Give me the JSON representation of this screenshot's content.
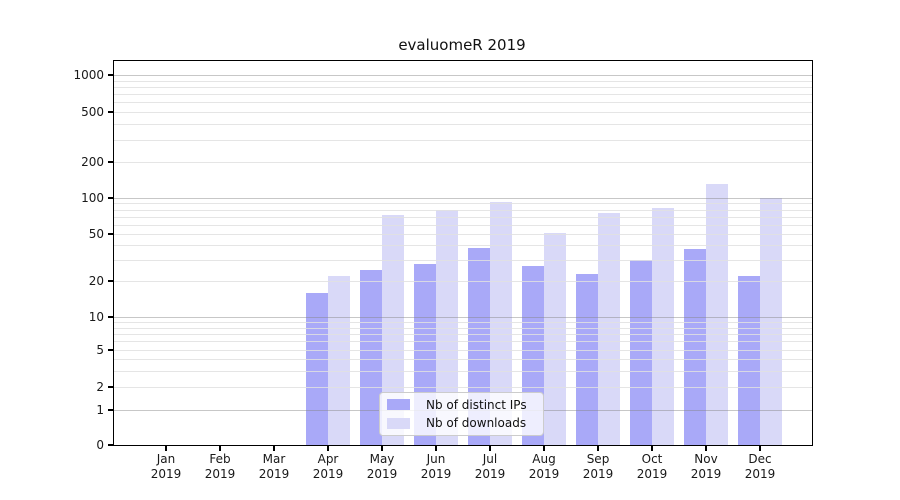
{
  "chart_data": {
    "type": "bar",
    "title": "evaluomeR 2019",
    "categories": [
      "Jan",
      "Feb",
      "Mar",
      "Apr",
      "May",
      "Jun",
      "Jul",
      "Aug",
      "Sep",
      "Oct",
      "Nov",
      "Dec"
    ],
    "year": "2019",
    "series": [
      {
        "name": "Nb of distinct IPs",
        "color": "#a9a9f8",
        "values": [
          0,
          0,
          0,
          16,
          25,
          28,
          38,
          27,
          23,
          30,
          37,
          22
        ]
      },
      {
        "name": "Nb of downloads",
        "color": "#d9d9f8",
        "values": [
          0,
          0,
          0,
          22,
          72,
          80,
          93,
          51,
          75,
          82,
          130,
          100
        ]
      }
    ],
    "yticks": [
      0,
      1,
      2,
      5,
      10,
      20,
      50,
      100,
      200,
      500,
      1000
    ],
    "ylim": [
      0,
      1300
    ],
    "yscale": "log-like with 0 baseline",
    "xlabel": "",
    "ylabel": "",
    "grid": true,
    "legend_position": "lower center"
  }
}
